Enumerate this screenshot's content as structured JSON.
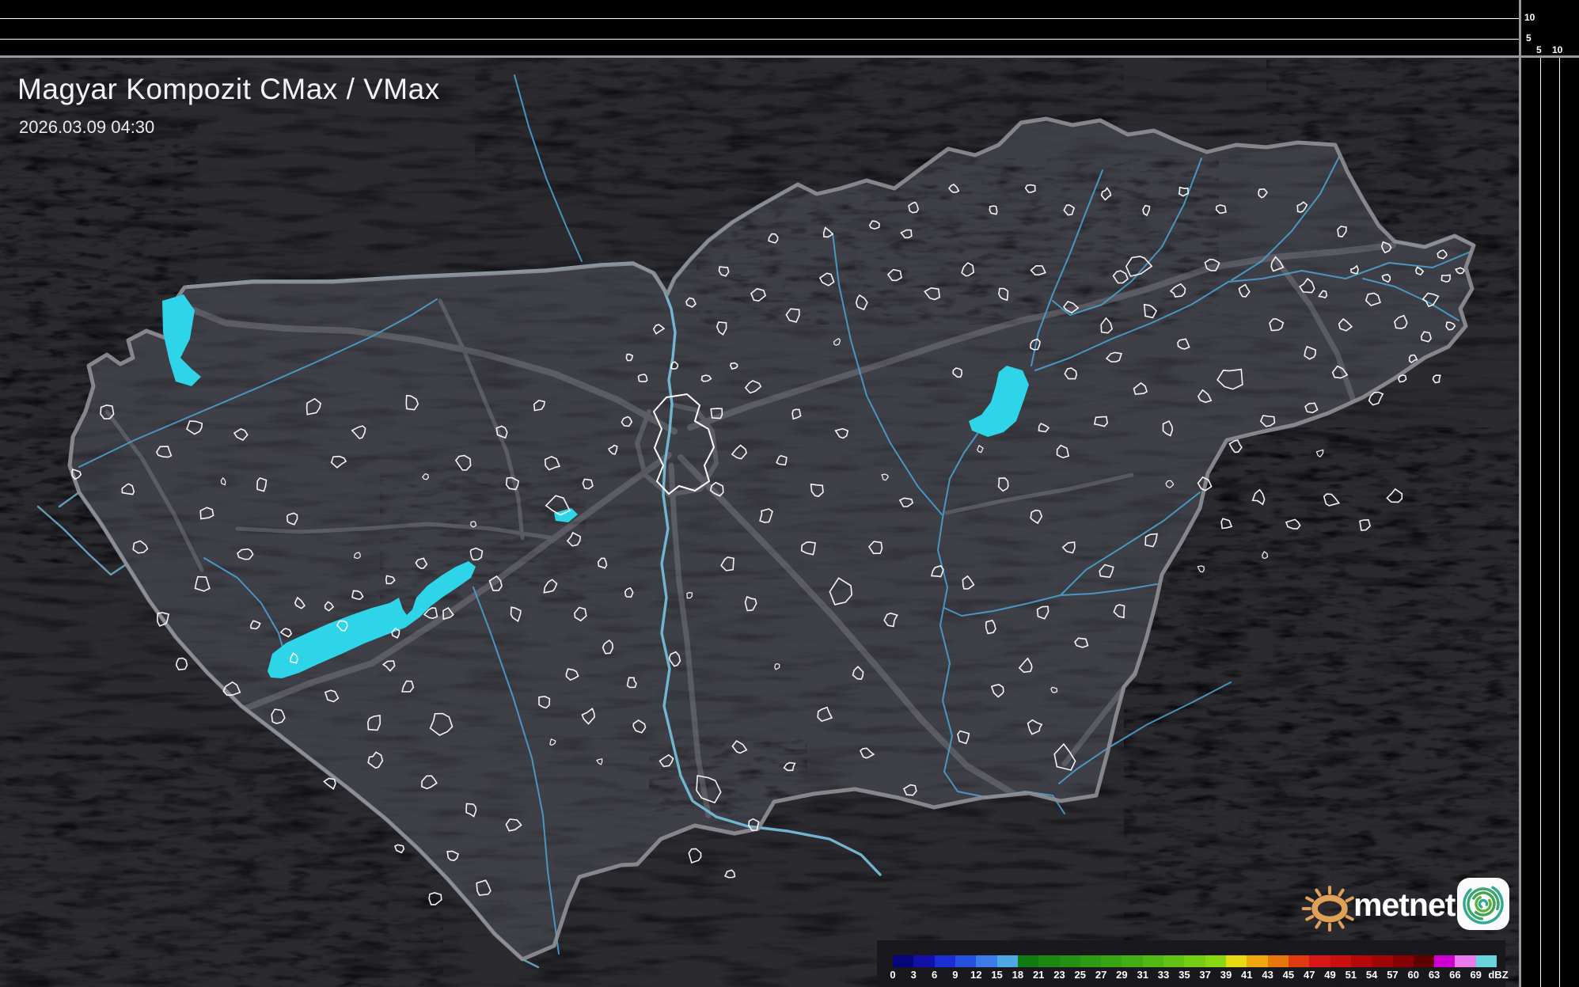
{
  "header": {
    "title": "Magyar Kompozit CMax / VMax",
    "timestamp": "2026.03.09 04:30"
  },
  "profile_axes": {
    "top_panel_labels": [
      "10",
      "5"
    ],
    "right_panel_labels": [
      "5",
      "10"
    ]
  },
  "colorbar": {
    "unit": "dBZ",
    "stops": [
      {
        "label": "0",
        "color": "#06067a"
      },
      {
        "label": "3",
        "color": "#1111a8"
      },
      {
        "label": "6",
        "color": "#1b2ed2"
      },
      {
        "label": "9",
        "color": "#2750de"
      },
      {
        "label": "12",
        "color": "#3b7ce8"
      },
      {
        "label": "15",
        "color": "#4da8e4"
      },
      {
        "label": "18",
        "color": "#117a11"
      },
      {
        "label": "21",
        "color": "#1d8714"
      },
      {
        "label": "23",
        "color": "#259114"
      },
      {
        "label": "25",
        "color": "#2e9b14"
      },
      {
        "label": "27",
        "color": "#38a514"
      },
      {
        "label": "29",
        "color": "#44af14"
      },
      {
        "label": "31",
        "color": "#52b914"
      },
      {
        "label": "33",
        "color": "#62c314"
      },
      {
        "label": "35",
        "color": "#74cd14"
      },
      {
        "label": "37",
        "color": "#8ad714"
      },
      {
        "label": "39",
        "color": "#e6da10"
      },
      {
        "label": "41",
        "color": "#f0a60e"
      },
      {
        "label": "43",
        "color": "#e7760d"
      },
      {
        "label": "45",
        "color": "#e23a10"
      },
      {
        "label": "47",
        "color": "#d81616"
      },
      {
        "label": "49",
        "color": "#c90f0f"
      },
      {
        "label": "51",
        "color": "#b40909"
      },
      {
        "label": "54",
        "color": "#9e0505"
      },
      {
        "label": "57",
        "color": "#860202"
      },
      {
        "label": "60",
        "color": "#5e0101"
      },
      {
        "label": "63",
        "color": "#ce00ce"
      },
      {
        "label": "66",
        "color": "#ea7bea"
      },
      {
        "label": "69",
        "color": "#68d3da"
      }
    ]
  },
  "logo": {
    "text": "metnet",
    "sun_color": "#dfa058",
    "app_icon_colors": [
      "#2fa98f",
      "#36a66b",
      "#42a352",
      "#5bb13d"
    ]
  },
  "map_colors": {
    "lake": "#2ed5e9",
    "river": "#4aa0cf",
    "danube": "#74bcd9",
    "border": "#8f8f96",
    "road": "#9a9aa2",
    "settlement": "#ffffff",
    "land_inside": "#3f3f47",
    "land_outside": "#2a2a2f"
  }
}
